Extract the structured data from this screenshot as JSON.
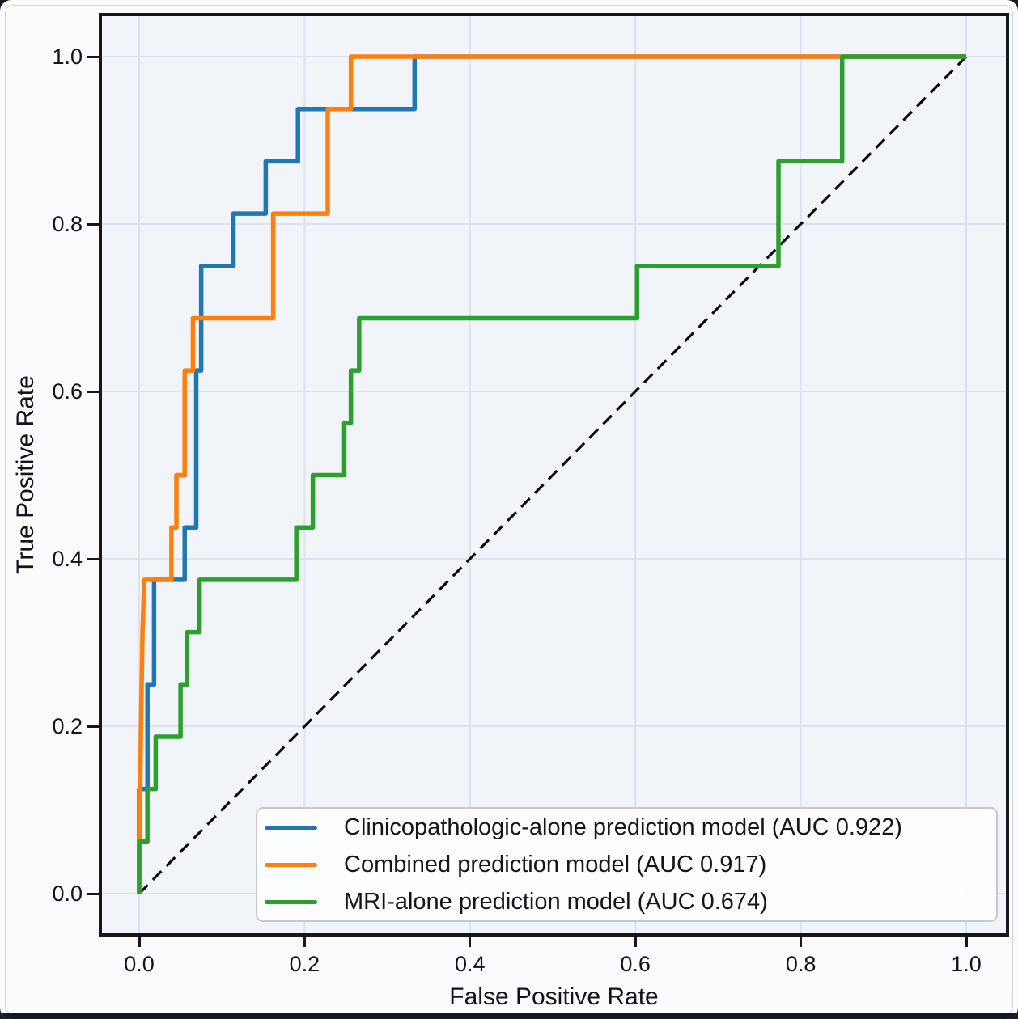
{
  "page": {
    "background": "#fafbfd",
    "frame_color": "#ccd6e2",
    "bottom_bar_color": "#141824"
  },
  "chart_data": {
    "type": "line",
    "subtype": "roc_curve",
    "title": "",
    "xlabel": "False Positive Rate",
    "ylabel": "True Positive Rate",
    "xlim": [
      0,
      1
    ],
    "ylim": [
      0,
      1
    ],
    "grid": true,
    "axes_background": "#f1f4f8",
    "grid_color": "#dde3ee",
    "spine_color": "#16161f",
    "x_ticks": [
      0,
      0.2,
      0.4,
      0.6,
      0.8,
      1.0
    ],
    "x_tick_labels": [
      "0.0",
      "0.2",
      "0.4",
      "0.6",
      "0.8",
      "1.0"
    ],
    "y_ticks": [
      0,
      0.2,
      0.4,
      0.6,
      0.8,
      1.0
    ],
    "y_tick_labels": [
      "0.0",
      "0.2",
      "0.4",
      "0.6",
      "0.8",
      "1.0"
    ],
    "legend_position": "lower right",
    "reference_line": {
      "style": "dashed",
      "color": "#0a0a0a",
      "points": [
        [
          0,
          0
        ],
        [
          1,
          1
        ]
      ]
    },
    "series": [
      {
        "id": "clinicopathologic",
        "label": "Clinicopathologic-alone prediction model (AUC 0.922)",
        "auc": 0.922,
        "color": "#1f77b4",
        "points": [
          [
            0,
            0
          ],
          [
            0,
            0.125
          ],
          [
            0.01,
            0.125
          ],
          [
            0.01,
            0.25
          ],
          [
            0.018,
            0.25
          ],
          [
            0.018,
            0.375
          ],
          [
            0.055,
            0.375
          ],
          [
            0.055,
            0.4375
          ],
          [
            0.069,
            0.4375
          ],
          [
            0.069,
            0.625
          ],
          [
            0.075,
            0.625
          ],
          [
            0.075,
            0.75
          ],
          [
            0.114,
            0.75
          ],
          [
            0.114,
            0.8125
          ],
          [
            0.153,
            0.8125
          ],
          [
            0.153,
            0.875
          ],
          [
            0.192,
            0.875
          ],
          [
            0.192,
            0.9375
          ],
          [
            0.333,
            0.9375
          ],
          [
            0.333,
            1.0
          ],
          [
            1,
            1
          ]
        ]
      },
      {
        "id": "combined",
        "label": "Combined prediction model (AUC 0.917)",
        "auc": 0.917,
        "color": "#ff7f0e",
        "points": [
          [
            0,
            0
          ],
          [
            0.002,
            0.1875
          ],
          [
            0.003,
            0.25
          ],
          [
            0.004,
            0.3125
          ],
          [
            0.006,
            0.375
          ],
          [
            0.039,
            0.375
          ],
          [
            0.039,
            0.4375
          ],
          [
            0.045,
            0.4375
          ],
          [
            0.045,
            0.5
          ],
          [
            0.055,
            0.5
          ],
          [
            0.055,
            0.625
          ],
          [
            0.065,
            0.625
          ],
          [
            0.065,
            0.6875
          ],
          [
            0.162,
            0.6875
          ],
          [
            0.162,
            0.8125
          ],
          [
            0.228,
            0.8125
          ],
          [
            0.228,
            0.9375
          ],
          [
            0.256,
            0.9375
          ],
          [
            0.256,
            1.0
          ],
          [
            1,
            1
          ]
        ]
      },
      {
        "id": "mri",
        "label": "MRI-alone prediction model (AUC 0.674)",
        "auc": 0.674,
        "color": "#2ca02c",
        "points": [
          [
            0,
            0
          ],
          [
            0,
            0.0625
          ],
          [
            0.01,
            0.0625
          ],
          [
            0.01,
            0.125
          ],
          [
            0.02,
            0.125
          ],
          [
            0.02,
            0.1875
          ],
          [
            0.05,
            0.1875
          ],
          [
            0.05,
            0.25
          ],
          [
            0.058,
            0.25
          ],
          [
            0.058,
            0.3125
          ],
          [
            0.073,
            0.3125
          ],
          [
            0.073,
            0.375
          ],
          [
            0.19,
            0.375
          ],
          [
            0.19,
            0.4375
          ],
          [
            0.21,
            0.4375
          ],
          [
            0.21,
            0.5
          ],
          [
            0.248,
            0.5
          ],
          [
            0.248,
            0.5625
          ],
          [
            0.256,
            0.5625
          ],
          [
            0.256,
            0.625
          ],
          [
            0.266,
            0.625
          ],
          [
            0.266,
            0.6875
          ],
          [
            0.602,
            0.6875
          ],
          [
            0.602,
            0.75
          ],
          [
            0.773,
            0.75
          ],
          [
            0.773,
            0.875
          ],
          [
            0.85,
            0.875
          ],
          [
            0.85,
            1.0
          ],
          [
            1,
            1
          ]
        ]
      }
    ]
  }
}
